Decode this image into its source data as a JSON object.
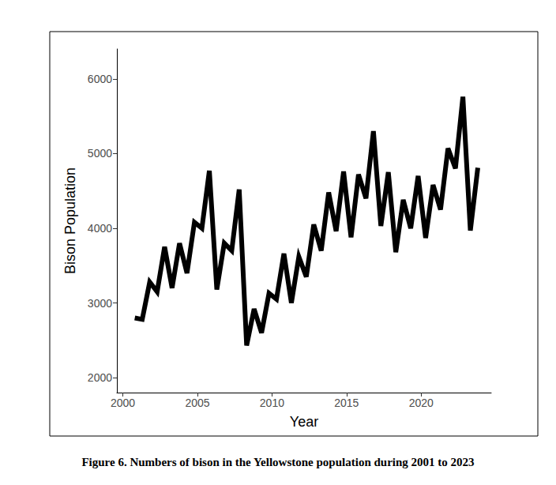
{
  "chart_data": {
    "type": "line",
    "title": "Figure 6. Numbers of bison in the Yellowstone population during 2001 to 2023",
    "x_label": "Year",
    "y_label": "Bison Population",
    "x": [
      2000.8,
      2001.3,
      2001.8,
      2002.3,
      2002.8,
      2003.3,
      2003.8,
      2004.3,
      2004.8,
      2005.3,
      2005.8,
      2006.3,
      2006.8,
      2007.3,
      2007.8,
      2008.3,
      2008.8,
      2009.3,
      2009.8,
      2010.3,
      2010.8,
      2011.3,
      2011.8,
      2012.3,
      2012.8,
      2013.3,
      2013.8,
      2014.3,
      2014.8,
      2015.3,
      2015.8,
      2016.3,
      2016.8,
      2017.3,
      2017.8,
      2018.3,
      2018.8,
      2019.3,
      2019.8,
      2020.3,
      2020.8,
      2021.3,
      2021.8,
      2022.3,
      2022.8,
      2023.3,
      2023.8
    ],
    "values": [
      2800,
      2780,
      3280,
      3150,
      3750,
      3200,
      3800,
      3400,
      4080,
      4000,
      4770,
      3180,
      3800,
      3700,
      4520,
      2430,
      2920,
      2600,
      3130,
      3050,
      3660,
      3000,
      3620,
      3350,
      4050,
      3700,
      4480,
      3960,
      4760,
      3880,
      4720,
      4400,
      5300,
      4030,
      4750,
      3680,
      4380,
      4000,
      4700,
      3870,
      4580,
      4250,
      5070,
      4800,
      5760,
      3970,
      4810
    ],
    "color": "#000000",
    "xlim": [
      1999.6,
      2024.7
    ],
    "xticks": [
      2000,
      2005,
      2010,
      2015,
      2020
    ],
    "ylim": [
      1800,
      6400
    ],
    "yticks": [
      2000,
      3000,
      4000,
      5000,
      6000
    ],
    "grid": false
  }
}
